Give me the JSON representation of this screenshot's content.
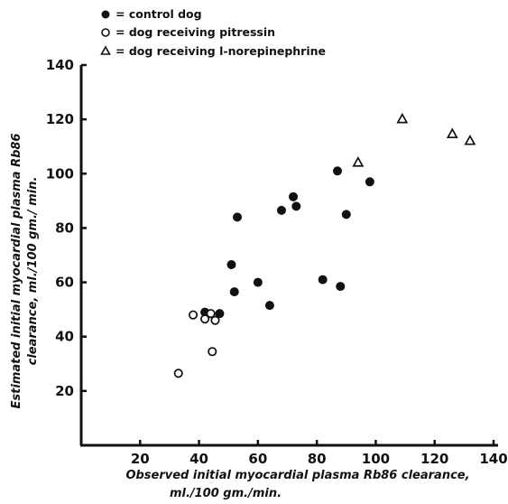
{
  "chart_data": {
    "type": "scatter",
    "xlabel_line1": "Observed initial myocardial plasma Rb86 clearance,",
    "xlabel_line2": "ml./100 gm./min.",
    "ylabel_line1": "Estimated initial myocardial plasma Rb86",
    "ylabel_line2": "clearance, ml./100 gm./ min.",
    "xlim": [
      0,
      140
    ],
    "ylim": [
      0,
      140
    ],
    "x_ticks": [
      "20",
      "40",
      "60",
      "80",
      "100",
      "120",
      "140"
    ],
    "y_ticks": [
      "20",
      "40",
      "60",
      "80",
      "100",
      "120",
      "140"
    ],
    "legend_position": "top-left",
    "series": [
      {
        "name": "= control dog",
        "marker": "filled-circle",
        "points": [
          {
            "x": 42,
            "y": 49
          },
          {
            "x": 47,
            "y": 48.5
          },
          {
            "x": 51,
            "y": 66.5
          },
          {
            "x": 52,
            "y": 56.5
          },
          {
            "x": 53,
            "y": 84
          },
          {
            "x": 60,
            "y": 60
          },
          {
            "x": 64,
            "y": 51.5
          },
          {
            "x": 68,
            "y": 86.5
          },
          {
            "x": 72,
            "y": 91.5
          },
          {
            "x": 73,
            "y": 88
          },
          {
            "x": 82,
            "y": 61
          },
          {
            "x": 87,
            "y": 101
          },
          {
            "x": 88,
            "y": 58.5
          },
          {
            "x": 90,
            "y": 85
          },
          {
            "x": 98,
            "y": 97
          }
        ]
      },
      {
        "name": "= dog receiving pitressin",
        "marker": "open-circle",
        "points": [
          {
            "x": 33,
            "y": 26.5
          },
          {
            "x": 38,
            "y": 48
          },
          {
            "x": 42,
            "y": 46.5
          },
          {
            "x": 44,
            "y": 48.5
          },
          {
            "x": 44.5,
            "y": 34.5
          },
          {
            "x": 45.5,
            "y": 46
          }
        ]
      },
      {
        "name": "= dog receiving l-norepinephrine",
        "marker": "open-triangle",
        "points": [
          {
            "x": 94,
            "y": 104
          },
          {
            "x": 109,
            "y": 120
          },
          {
            "x": 126,
            "y": 114.5
          },
          {
            "x": 132,
            "y": 112
          }
        ]
      }
    ]
  }
}
